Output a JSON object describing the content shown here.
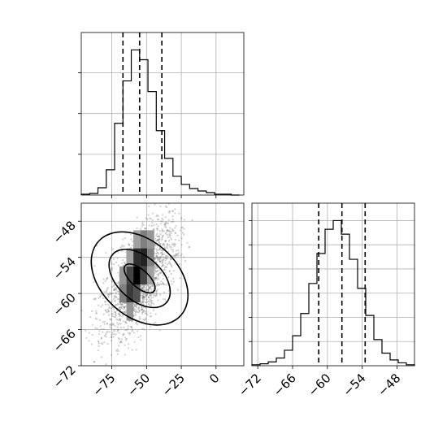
{
  "chart_data": [
    {
      "type": "histogram",
      "panel": "top-left",
      "variable": "x",
      "xlim": [
        -97,
        20
      ],
      "xticks": [
        -75,
        -50,
        -25,
        0
      ],
      "grid": true,
      "y_tick_labels_shown": false,
      "bin_edges": [
        -97,
        -91,
        -85,
        -79,
        -73,
        -67,
        -61,
        -55,
        -49,
        -43,
        -37,
        -31,
        -25,
        -19,
        -13,
        -7,
        -1,
        5,
        11,
        17
      ],
      "counts": [
        1,
        2,
        9,
        31,
        88,
        140,
        178,
        166,
        127,
        79,
        45,
        23,
        13,
        8,
        5,
        3,
        1,
        1,
        0
      ],
      "quantiles": [
        -67,
        -55,
        -39
      ]
    },
    {
      "type": "histogram",
      "panel": "bottom-right",
      "variable": "y",
      "xlim": [
        -73,
        -45
      ],
      "xticks": [
        -72,
        -66,
        -60,
        -54,
        -48
      ],
      "tick_labels": [
        "−72",
        "−66",
        "−60",
        "−54",
        "−48"
      ],
      "grid": true,
      "y_tick_labels_shown": false,
      "bin_edges": [
        -73,
        -71.6,
        -70.2,
        -68.8,
        -67.4,
        -66,
        -64.6,
        -63.2,
        -61.8,
        -60.4,
        -59,
        -57.6,
        -56.2,
        -54.8,
        -53.4,
        -52,
        -50.6,
        -49.2,
        -47.8,
        -46.4,
        -45
      ],
      "counts": [
        1,
        2,
        4,
        8,
        16,
        31,
        54,
        85,
        116,
        141,
        150,
        136,
        110,
        80,
        52,
        27,
        13,
        6,
        3,
        1
      ],
      "quantiles": [
        -61.5,
        -57.5,
        -53.5
      ]
    },
    {
      "type": "scatter-density",
      "panel": "bottom-left",
      "x_variable": "x",
      "y_variable": "y",
      "xlim": [
        -97,
        20
      ],
      "ylim": [
        -72,
        -45
      ],
      "xticks": [
        -75,
        -50,
        -25,
        0
      ],
      "yticks": [
        -72,
        -66,
        -60,
        -54,
        -48
      ],
      "x_tick_labels": [
        "−75",
        "−50",
        "−25",
        "0"
      ],
      "y_tick_labels": [
        "−72",
        "−66",
        "−60",
        "−54",
        "−48"
      ],
      "grid": true,
      "center": [
        -55,
        -57.5
      ],
      "contours": [
        {
          "level": "inner",
          "x_semi_axis": 6,
          "y_semi_axis": 3.2
        },
        {
          "level": "middle",
          "x_semi_axis": 15,
          "y_semi_axis": 6
        },
        {
          "level": "outer",
          "x_semi_axis": 26,
          "y_semi_axis": 9.2
        }
      ],
      "peak_density_cells": [
        {
          "x": -57,
          "y": -57,
          "weight": 1.0
        },
        {
          "x": -52,
          "y": -54,
          "weight": 0.85
        },
        {
          "x": -57,
          "y": -54,
          "weight": 0.8
        },
        {
          "x": -62,
          "y": -60,
          "weight": 0.75
        },
        {
          "x": -62,
          "y": -57,
          "weight": 0.7
        },
        {
          "x": -52,
          "y": -57,
          "weight": 0.7
        },
        {
          "x": -57,
          "y": -60,
          "weight": 0.65
        },
        {
          "x": -47,
          "y": -54,
          "weight": 0.45
        },
        {
          "x": -67,
          "y": -60,
          "weight": 0.45
        },
        {
          "x": -52,
          "y": -51,
          "weight": 0.45
        },
        {
          "x": -62,
          "y": -63,
          "weight": 0.35
        },
        {
          "x": -47,
          "y": -51,
          "weight": 0.35
        },
        {
          "x": -67,
          "y": -57,
          "weight": 0.35
        },
        {
          "x": -57,
          "y": -51,
          "weight": 0.3
        },
        {
          "x": -47,
          "y": -57,
          "weight": 0.3
        },
        {
          "x": -62,
          "y": -54,
          "weight": 0.3
        }
      ]
    }
  ]
}
